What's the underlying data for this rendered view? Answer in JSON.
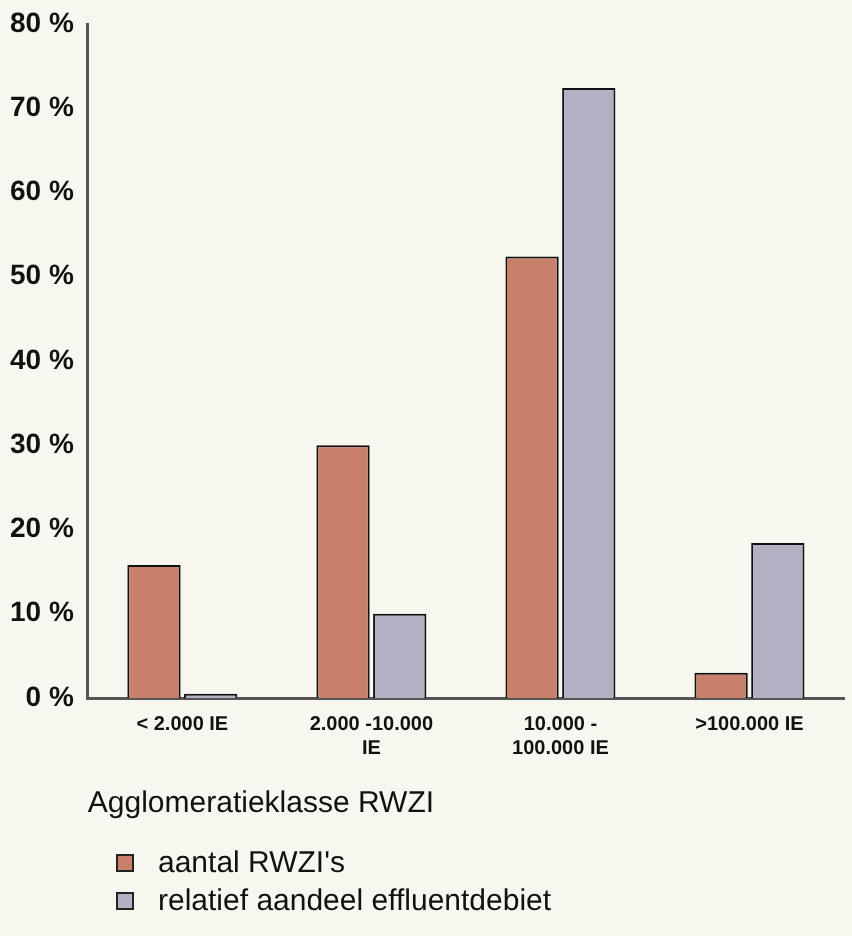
{
  "chart_data": {
    "type": "bar",
    "xlabel": "Agglomeratieklasse RWZI",
    "categories": [
      "< 2.000 IE",
      "2.000 -10.000 IE",
      "10.000 - 100.000 IE",
      ">100.000 IE"
    ],
    "series": [
      {
        "name": "aantal RWZI's",
        "color": "#c8806a",
        "values": [
          15.8,
          30,
          52.4,
          3
        ]
      },
      {
        "name": "relatief aandeel effluentdebiet",
        "color": "#b4b0c4",
        "values": [
          0.5,
          10,
          72.4,
          18.4
        ]
      }
    ],
    "ylim": [
      0,
      80
    ],
    "yticks": [
      {
        "value": 0,
        "label": "0 %"
      },
      {
        "value": 10,
        "label": "10 %"
      },
      {
        "value": 20,
        "label": "20 %"
      },
      {
        "value": 30,
        "label": "30 %"
      },
      {
        "value": 40,
        "label": "40 %"
      },
      {
        "value": 50,
        "label": "50 %"
      },
      {
        "value": 60,
        "label": "60 %"
      },
      {
        "value": 70,
        "label": "70 %"
      },
      {
        "value": 80,
        "label": "80 %"
      }
    ],
    "grid": false,
    "legend": "bottom left"
  }
}
